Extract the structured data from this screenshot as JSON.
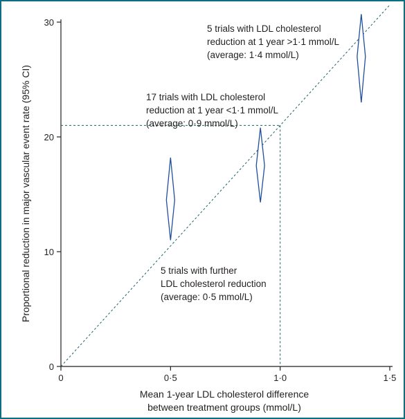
{
  "chart_data": {
    "type": "scatter",
    "xlabel": [
      "Mean 1-year LDL cholesterol difference",
      "between treatment groups (mmol/L)"
    ],
    "ylabel": "Proportional reduction in major vascular event rate (95% CI)",
    "xlim": [
      0,
      1.5
    ],
    "ylim": [
      0,
      30
    ],
    "x_ticks": [
      0,
      0.5,
      1.0,
      1.5
    ],
    "x_tick_labels": [
      "0",
      "0·5",
      "1·0",
      "1·5"
    ],
    "y_ticks": [
      0,
      10,
      20,
      30
    ],
    "y_tick_labels": [
      "0",
      "10",
      "20",
      "30"
    ],
    "grid": false,
    "reference_line": {
      "style": "dotted",
      "from": [
        0,
        0
      ],
      "to": [
        1.5,
        31.5
      ]
    },
    "highlight": {
      "x": 1.0,
      "y": 21,
      "style": "dotted"
    },
    "points": [
      {
        "x": 0.5,
        "y": 14.5,
        "ci": [
          11,
          18.2
        ]
      },
      {
        "x": 0.91,
        "y": 17.5,
        "ci": [
          14.3,
          20.8
        ]
      },
      {
        "x": 1.37,
        "y": 27.0,
        "ci": [
          23,
          30.7
        ]
      }
    ],
    "annotations": [
      {
        "lines": [
          "5 trials with further",
          "LDL cholesterol reduction",
          "(average: 0·5 mmol/L)"
        ]
      },
      {
        "lines": [
          "17 trials with LDL cholesterol",
          "reduction at 1 year <1·1 mmol/L",
          "(average: 0·9 mmol/L)"
        ]
      },
      {
        "lines": [
          "5 trials with LDL cholesterol",
          "reduction at 1 year >1·1 mmol/L",
          "(average: 1·4 mmol/L)"
        ]
      }
    ],
    "colors": {
      "diamond": "#1f4e9c",
      "reference": "#1f5f6a",
      "axis": "#231f20",
      "frame": "#0b6e82"
    }
  }
}
